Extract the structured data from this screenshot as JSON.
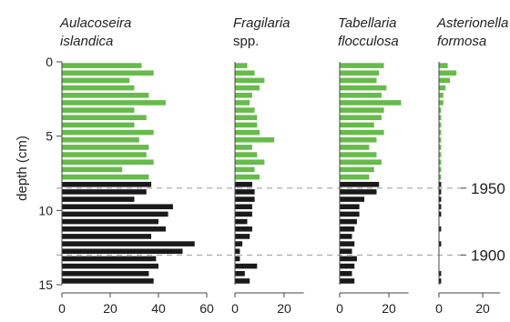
{
  "header_fragment": "",
  "chart_data": {
    "type": "bar",
    "orientation": "horizontal",
    "ylabel": "depth (cm)",
    "y_ticks": [
      0,
      5,
      10,
      15
    ],
    "ylim": [
      0,
      15
    ],
    "depths": [
      0.25,
      0.75,
      1.25,
      1.75,
      2.25,
      2.75,
      3.25,
      3.75,
      4.25,
      4.75,
      5.25,
      5.75,
      6.25,
      6.75,
      7.25,
      7.75,
      8.25,
      8.75,
      9.25,
      9.75,
      10.25,
      10.75,
      11.25,
      11.75,
      12.25,
      12.75,
      13.25,
      13.75,
      14.25,
      14.75
    ],
    "colors": {
      "upper": "#66bb4a",
      "lower": "#1a1a1a"
    },
    "color_split_depth": 8.0,
    "date_lines": [
      {
        "label": "1950",
        "depth": 8.5
      },
      {
        "label": "1900",
        "depth": 13.0
      }
    ],
    "panels": [
      {
        "title_lines": [
          "Aulacoseira",
          "islandica"
        ],
        "italic": [
          true,
          true
        ],
        "x_ticks": [
          0,
          20,
          40,
          60
        ],
        "xlim": [
          0,
          60
        ],
        "values": [
          33,
          38,
          28,
          30,
          36,
          43,
          30,
          35,
          30,
          38,
          32,
          36,
          35,
          38,
          25,
          36,
          37,
          35,
          30,
          46,
          44,
          40,
          43,
          37,
          55,
          50,
          39,
          40,
          36,
          38
        ]
      },
      {
        "title_lines": [
          "Fragilaria",
          "spp."
        ],
        "italic": [
          true,
          false
        ],
        "x_ticks": [
          0,
          20
        ],
        "xlim": [
          0,
          28
        ],
        "values": [
          5,
          8,
          12,
          10,
          7,
          6,
          8,
          9,
          9,
          10,
          16,
          7,
          9,
          12,
          8,
          10,
          7,
          8,
          8,
          7,
          7,
          5,
          7,
          6,
          3,
          2,
          2,
          9,
          4,
          6
        ]
      },
      {
        "title_lines": [
          "Tabellaria",
          "flocculosa"
        ],
        "italic": [
          true,
          true
        ],
        "x_ticks": [
          0,
          20
        ],
        "xlim": [
          0,
          28
        ],
        "values": [
          18,
          16,
          15,
          19,
          17,
          25,
          18,
          17,
          14,
          18,
          15,
          12,
          15,
          17,
          14,
          12,
          16,
          15,
          10,
          8,
          8,
          7,
          6,
          5,
          6,
          5,
          7,
          6,
          5,
          6
        ]
      },
      {
        "title_lines": [
          "Asterionella",
          "formosa"
        ],
        "italic": [
          true,
          true
        ],
        "x_ticks": [
          0,
          20
        ],
        "xlim": [
          0,
          28
        ],
        "values": [
          4,
          8,
          5,
          3,
          2,
          2,
          1,
          1,
          1,
          1,
          1,
          1,
          1,
          1,
          1,
          1,
          1,
          1,
          1,
          1,
          1,
          0,
          1,
          0,
          1,
          0,
          0,
          0,
          1,
          1
        ]
      }
    ]
  }
}
